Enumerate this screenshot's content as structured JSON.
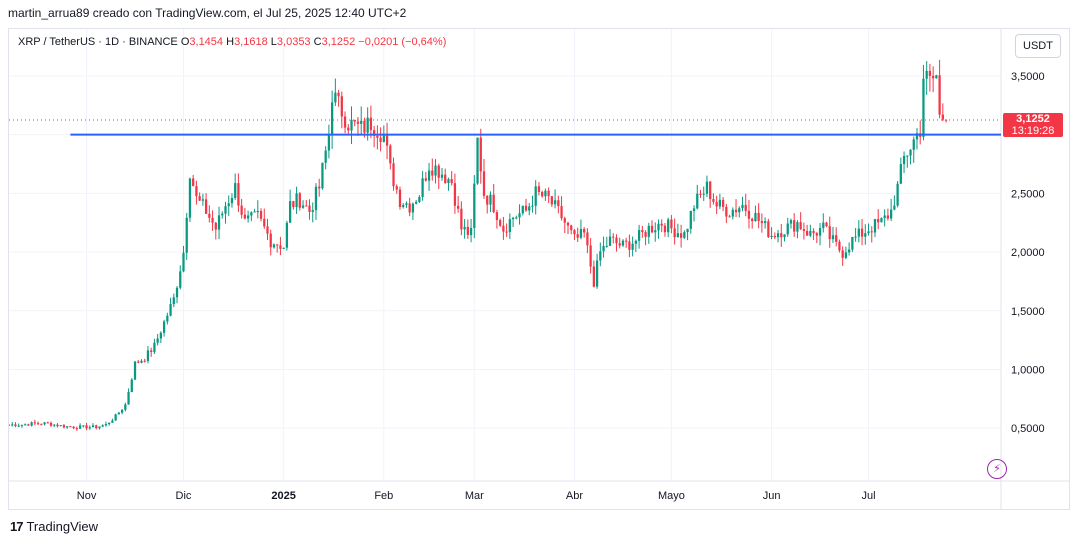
{
  "header": {
    "attribution": "martin_arrua89 creado con TradingView.com, el Jul 25, 2025 12:40 UTC+2"
  },
  "legend": {
    "symbol": "XRP / TetherUS · 1D · BINANCE",
    "open_label": "O",
    "open": "3,1454",
    "high_label": "H",
    "high": "3,1618",
    "low_label": "L",
    "low": "3,0353",
    "close_label": "C",
    "close": "3,1252",
    "change": "−0,0201 (−0,64%)"
  },
  "currency_button": "USDT",
  "price_badge": {
    "price": "3,1252",
    "countdown": "13:19:28"
  },
  "footer": {
    "brand": "TradingView",
    "logo": "17"
  },
  "colors": {
    "up": "#089981",
    "down": "#f23645",
    "line": "#2962ff",
    "grid": "#f0f3fa"
  },
  "chart_data": {
    "type": "candlestick",
    "y_scale": "linear",
    "ylim": [
      0.05,
      3.9
    ],
    "y_ticks": [
      "0,5000",
      "1,0000",
      "1,5000",
      "2,0000",
      "2,5000",
      "3,5000"
    ],
    "y_tick_values": [
      0.5,
      1.0,
      1.5,
      2.0,
      2.5,
      3.5
    ],
    "x_ticks": [
      "Nov",
      "Dic",
      "2025",
      "Feb",
      "Mar",
      "Abr",
      "Mayo",
      "Jun",
      "Jul"
    ],
    "x_tick_dates": [
      "2024-11-01",
      "2024-12-01",
      "2025-01-01",
      "2025-02-01",
      "2025-03-01",
      "2025-04-01",
      "2025-05-01",
      "2025-06-01",
      "2025-07-01"
    ],
    "x_range": [
      "2024-10-08",
      "2025-08-11"
    ],
    "horizontal_line": {
      "value": 3.0
    },
    "last_price_line": {
      "value": 3.1252
    },
    "close_series": [
      [
        "2024-10-08",
        0.53
      ],
      [
        "2024-10-12",
        0.53
      ],
      [
        "2024-10-16",
        0.54
      ],
      [
        "2024-10-20",
        0.54
      ],
      [
        "2024-10-24",
        0.52
      ],
      [
        "2024-10-28",
        0.51
      ],
      [
        "2024-11-01",
        0.51
      ],
      [
        "2024-11-04",
        0.51
      ],
      [
        "2024-11-07",
        0.53
      ],
      [
        "2024-11-10",
        0.6
      ],
      [
        "2024-11-13",
        0.7
      ],
      [
        "2024-11-16",
        1.05
      ],
      [
        "2024-11-19",
        1.1
      ],
      [
        "2024-11-22",
        1.2
      ],
      [
        "2024-11-25",
        1.4
      ],
      [
        "2024-11-28",
        1.6
      ],
      [
        "2024-12-01",
        2.0
      ],
      [
        "2024-12-03",
        2.7
      ],
      [
        "2024-12-05",
        2.45
      ],
      [
        "2024-12-08",
        2.35
      ],
      [
        "2024-12-11",
        2.2
      ],
      [
        "2024-12-14",
        2.4
      ],
      [
        "2024-12-17",
        2.55
      ],
      [
        "2024-12-20",
        2.25
      ],
      [
        "2024-12-24",
        2.3
      ],
      [
        "2024-12-28",
        2.1
      ],
      [
        "2025-01-01",
        2.05
      ],
      [
        "2025-01-03",
        2.4
      ],
      [
        "2025-01-06",
        2.45
      ],
      [
        "2025-01-09",
        2.35
      ],
      [
        "2025-01-12",
        2.55
      ],
      [
        "2025-01-15",
        3.0
      ],
      [
        "2025-01-16",
        3.35
      ],
      [
        "2025-01-18",
        3.25
      ],
      [
        "2025-01-21",
        3.1
      ],
      [
        "2025-01-25",
        3.05
      ],
      [
        "2025-01-28",
        3.1
      ],
      [
        "2025-02-01",
        3.0
      ],
      [
        "2025-02-03",
        2.7
      ],
      [
        "2025-02-06",
        2.45
      ],
      [
        "2025-02-09",
        2.4
      ],
      [
        "2025-02-12",
        2.5
      ],
      [
        "2025-02-15",
        2.75
      ],
      [
        "2025-02-18",
        2.7
      ],
      [
        "2025-02-22",
        2.6
      ],
      [
        "2025-02-25",
        2.2
      ],
      [
        "2025-02-28",
        2.15
      ],
      [
        "2025-03-02",
        2.95
      ],
      [
        "2025-03-04",
        2.5
      ],
      [
        "2025-03-07",
        2.4
      ],
      [
        "2025-03-10",
        2.2
      ],
      [
        "2025-03-13",
        2.3
      ],
      [
        "2025-03-17",
        2.35
      ],
      [
        "2025-03-20",
        2.5
      ],
      [
        "2025-03-24",
        2.45
      ],
      [
        "2025-03-28",
        2.3
      ],
      [
        "2025-04-01",
        2.1
      ],
      [
        "2025-04-04",
        2.15
      ],
      [
        "2025-04-07",
        1.75
      ],
      [
        "2025-04-09",
        2.0
      ],
      [
        "2025-04-12",
        2.1
      ],
      [
        "2025-04-16",
        2.05
      ],
      [
        "2025-04-20",
        2.1
      ],
      [
        "2025-04-24",
        2.2
      ],
      [
        "2025-04-28",
        2.25
      ],
      [
        "2025-05-01",
        2.2
      ],
      [
        "2025-05-05",
        2.15
      ],
      [
        "2025-05-08",
        2.4
      ],
      [
        "2025-05-12",
        2.55
      ],
      [
        "2025-05-15",
        2.4
      ],
      [
        "2025-05-19",
        2.35
      ],
      [
        "2025-05-23",
        2.4
      ],
      [
        "2025-05-27",
        2.3
      ],
      [
        "2025-06-01",
        2.15
      ],
      [
        "2025-06-05",
        2.2
      ],
      [
        "2025-06-09",
        2.25
      ],
      [
        "2025-06-13",
        2.15
      ],
      [
        "2025-06-17",
        2.2
      ],
      [
        "2025-06-21",
        2.05
      ],
      [
        "2025-06-23",
        2.0
      ],
      [
        "2025-06-26",
        2.1
      ],
      [
        "2025-07-01",
        2.2
      ],
      [
        "2025-07-05",
        2.25
      ],
      [
        "2025-07-08",
        2.35
      ],
      [
        "2025-07-10",
        2.55
      ],
      [
        "2025-07-12",
        2.8
      ],
      [
        "2025-07-15",
        2.95
      ],
      [
        "2025-07-17",
        3.05
      ],
      [
        "2025-07-18",
        3.5
      ],
      [
        "2025-07-20",
        3.45
      ],
      [
        "2025-07-22",
        3.5
      ],
      [
        "2025-07-23",
        3.15
      ],
      [
        "2025-07-24",
        3.15
      ],
      [
        "2025-07-25",
        3.1252
      ]
    ]
  }
}
